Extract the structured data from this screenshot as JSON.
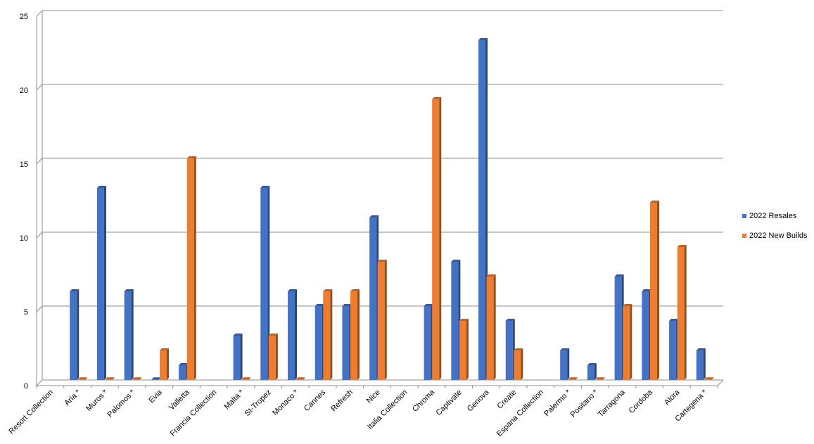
{
  "chart_data": {
    "type": "bar",
    "title": "",
    "xlabel": "",
    "ylabel": "",
    "ylim": [
      0,
      25
    ],
    "yticks": [
      0,
      5,
      10,
      15,
      20,
      25
    ],
    "grid": true,
    "legend_position": "right",
    "categories": [
      "Resort Collection",
      "Aria *",
      "Muros *",
      "Palomos *",
      "Evia",
      "Valletta",
      "Francia Collection",
      "Malta *",
      "St-Tropez",
      "Monaco *",
      "Cannes",
      "Refresh",
      "Nice",
      "Italia Collection",
      "Chroma",
      "Captivate",
      "Genova",
      "Create",
      "Espana Collection",
      "Palermo *",
      "Positano *",
      "Tarragona",
      "Cordoba",
      "Alora",
      "Cartegena *"
    ],
    "series": [
      {
        "name": "2022 Resales",
        "color": "#4472c4",
        "values": [
          null,
          6,
          13,
          6,
          0,
          1,
          null,
          3,
          13,
          6,
          5,
          5,
          11,
          null,
          5,
          8,
          23,
          4,
          null,
          2,
          1,
          7,
          6,
          4,
          2
        ]
      },
      {
        "name": "2022 New Builds",
        "color": "#ed7d31",
        "values": [
          null,
          0,
          0,
          0,
          2,
          15,
          null,
          0,
          3,
          0,
          6,
          6,
          8,
          null,
          19,
          4,
          7,
          2,
          null,
          0,
          0,
          5,
          12,
          9,
          0
        ]
      }
    ]
  }
}
